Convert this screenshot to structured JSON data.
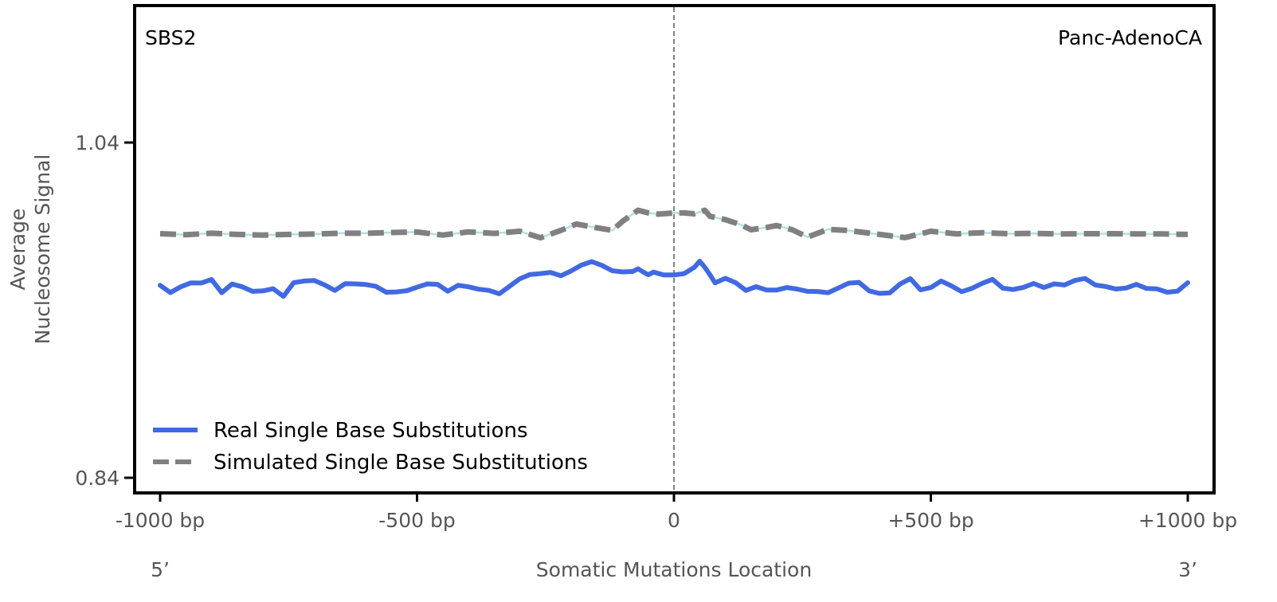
{
  "chart_data": {
    "type": "line",
    "title": "",
    "annotations": {
      "top_left": "SBS2",
      "top_right": "Panc-AdenoCA"
    },
    "xlabel": "Somatic Mutations Location",
    "ylabel_line1": "Average",
    "ylabel_line2": "Nucleosome Signal",
    "x_end_labels": {
      "left": "5’",
      "right": "3’"
    },
    "xlim": [
      -1000,
      1000
    ],
    "ylim": [
      0.84,
      1.04
    ],
    "x_ticks": [
      {
        "value": -1000,
        "label": "-1000 bp"
      },
      {
        "value": -500,
        "label": "-500 bp"
      },
      {
        "value": 0,
        "label": "0"
      },
      {
        "value": 500,
        "label": "+500 bp"
      },
      {
        "value": 1000,
        "label": "+1000 bp"
      }
    ],
    "y_ticks": [
      {
        "value": 0.84,
        "label": "0.84"
      },
      {
        "value": 1.04,
        "label": "1.04"
      }
    ],
    "center_line_x": 0,
    "legend_position": "lower-left",
    "grid": false,
    "series": [
      {
        "name": "Real Single Base Substitutions",
        "color": "#4169e1",
        "style": "solid",
        "x": [
          -1000,
          -980,
          -960,
          -940,
          -920,
          -900,
          -880,
          -860,
          -840,
          -820,
          -800,
          -780,
          -760,
          -740,
          -720,
          -700,
          -680,
          -660,
          -640,
          -620,
          -600,
          -580,
          -560,
          -540,
          -520,
          -500,
          -480,
          -460,
          -440,
          -420,
          -400,
          -380,
          -360,
          -340,
          -320,
          -300,
          -280,
          -260,
          -240,
          -220,
          -200,
          -180,
          -160,
          -140,
          -120,
          -100,
          -80,
          -70,
          -60,
          -50,
          -40,
          -20,
          0,
          20,
          40,
          50,
          60,
          70,
          80,
          100,
          120,
          140,
          160,
          180,
          200,
          220,
          240,
          260,
          280,
          300,
          320,
          340,
          360,
          380,
          400,
          420,
          440,
          460,
          480,
          500,
          520,
          540,
          560,
          580,
          600,
          620,
          640,
          660,
          680,
          700,
          720,
          740,
          760,
          780,
          800,
          820,
          840,
          860,
          880,
          900,
          920,
          940,
          960,
          980,
          1000
        ],
        "y": [
          0.9548,
          0.9505,
          0.9539,
          0.9563,
          0.9562,
          0.9583,
          0.9504,
          0.9556,
          0.9539,
          0.9512,
          0.9515,
          0.9528,
          0.9482,
          0.9564,
          0.9574,
          0.9577,
          0.9551,
          0.9518,
          0.9558,
          0.9557,
          0.9553,
          0.9542,
          0.9507,
          0.9509,
          0.9516,
          0.9537,
          0.9557,
          0.9554,
          0.9513,
          0.9548,
          0.9539,
          0.9525,
          0.9518,
          0.9498,
          0.9542,
          0.9587,
          0.9613,
          0.9618,
          0.9625,
          0.9605,
          0.9634,
          0.9669,
          0.969,
          0.9667,
          0.9635,
          0.9628,
          0.9631,
          0.9647,
          0.9628,
          0.9611,
          0.9627,
          0.961,
          0.961,
          0.9618,
          0.9656,
          0.9692,
          0.9656,
          0.9611,
          0.9563,
          0.959,
          0.9564,
          0.9518,
          0.954,
          0.952,
          0.952,
          0.9535,
          0.9526,
          0.9512,
          0.9511,
          0.9504,
          0.9532,
          0.9561,
          0.9566,
          0.9515,
          0.95,
          0.9503,
          0.9556,
          0.9588,
          0.9521,
          0.9535,
          0.9574,
          0.9545,
          0.951,
          0.953,
          0.956,
          0.9584,
          0.9531,
          0.9523,
          0.9536,
          0.9559,
          0.9535,
          0.9557,
          0.955,
          0.9577,
          0.9589,
          0.955,
          0.9541,
          0.9526,
          0.9532,
          0.9554,
          0.9529,
          0.9527,
          0.9507,
          0.9513,
          0.9564
        ]
      },
      {
        "name": "Simulated Single Base Substitutions",
        "color": "#808080",
        "style": "dashed",
        "x": [
          -1000,
          -950,
          -900,
          -850,
          -800,
          -750,
          -700,
          -650,
          -600,
          -550,
          -500,
          -450,
          -400,
          -350,
          -300,
          -260,
          -220,
          -190,
          -150,
          -120,
          -100,
          -70,
          -50,
          -30,
          0,
          20,
          40,
          60,
          70,
          100,
          130,
          150,
          180,
          200,
          230,
          260,
          300,
          340,
          400,
          450,
          500,
          550,
          600,
          650,
          700,
          750,
          800,
          850,
          900,
          950,
          1000
        ],
        "y": [
          0.9856,
          0.985,
          0.9859,
          0.9852,
          0.9848,
          0.9852,
          0.9854,
          0.9859,
          0.9859,
          0.9863,
          0.9866,
          0.9848,
          0.9867,
          0.9858,
          0.9871,
          0.9832,
          0.9876,
          0.9914,
          0.9891,
          0.9876,
          0.993,
          0.9996,
          0.998,
          0.9973,
          0.998,
          0.998,
          0.9975,
          0.9996,
          0.996,
          0.994,
          0.991,
          0.988,
          0.9893,
          0.9905,
          0.988,
          0.9836,
          0.9882,
          0.9875,
          0.9852,
          0.9833,
          0.9871,
          0.9855,
          0.9862,
          0.9856,
          0.9858,
          0.9855,
          0.9856,
          0.9856,
          0.9855,
          0.9855,
          0.9852
        ]
      }
    ]
  }
}
